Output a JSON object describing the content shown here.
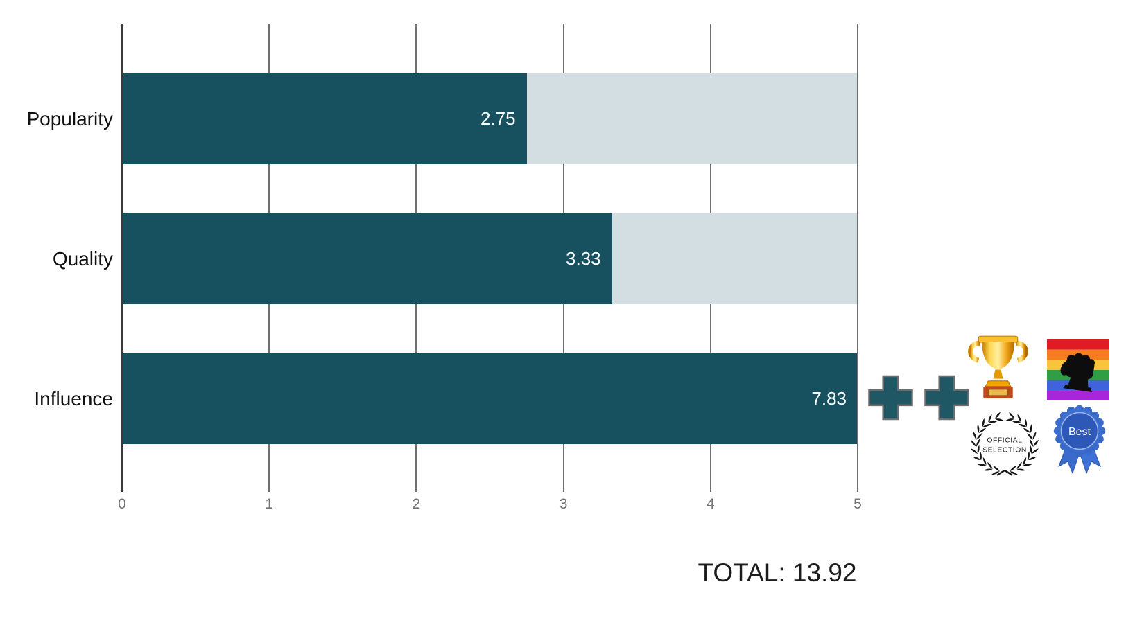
{
  "chart_data": {
    "type": "bar",
    "orientation": "horizontal",
    "title": "",
    "categories": [
      "Popularity",
      "Quality",
      "Influence"
    ],
    "values": [
      2.75,
      3.33,
      7.83
    ],
    "value_labels": [
      "2.75",
      "3.33",
      "7.83"
    ],
    "xlabel": "",
    "ylabel": "",
    "xlim": [
      0,
      5
    ],
    "x_ticks": [
      "0",
      "1",
      "2",
      "3",
      "4",
      "5"
    ],
    "grid": true,
    "legend": "none",
    "colors": {
      "bar": "#17505e",
      "track": "#d3dee3",
      "value_label": "#ffffff",
      "gridline": "#6f6f6f",
      "axis": "#3a3a3a",
      "tick_label": "#737373",
      "category_label": "#111111"
    }
  },
  "total": {
    "label": "TOTAL: 13.92"
  },
  "badges": {
    "icons": [
      "plus-icon",
      "plus-icon",
      "trophy-icon",
      "pride-fist-icon",
      "official-selection-laurel-icon",
      "best-ribbon-icon"
    ],
    "plus_color": "#1f5764",
    "official_selection": {
      "line1": "OFFICIAL",
      "line2": "SELECTION"
    },
    "best_ribbon": {
      "label": "Best"
    },
    "pride_flag_stripes": [
      "#e01b24",
      "#f57d1f",
      "#f9c33c",
      "#2f9e44",
      "#3e63dd",
      "#a826da"
    ]
  }
}
